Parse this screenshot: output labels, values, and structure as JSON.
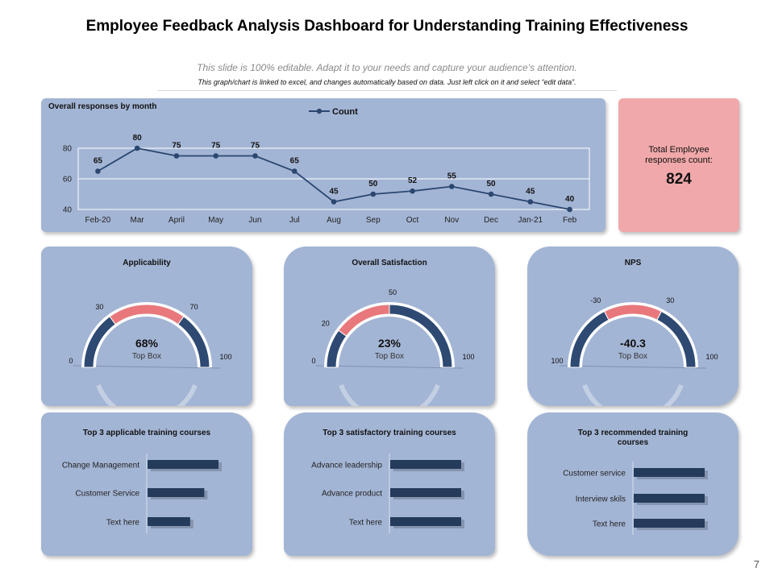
{
  "header": {
    "title": "Employee Feedback Analysis Dashboard for Understanding Training Effectiveness",
    "subtitle1": "This slide is 100% editable. Adapt it to your needs and capture your audience’s attention.",
    "subtitle2": "This graph/chart is linked to excel, and changes automatically based on data. Just left click on it and select “edit data”."
  },
  "total": {
    "label_line1": "Total Employee",
    "label_line2": "responses count:",
    "value": "824"
  },
  "page_number": "7",
  "colors": {
    "panel": "#a3b5d5",
    "line": "#2b4770",
    "bar": "#243b5c",
    "gauge_dark": "#2e4a73",
    "gauge_pink": "#e8787c",
    "total_bg": "#f0a8aa"
  },
  "chart_data": [
    {
      "type": "line",
      "title": "Overall responses by month",
      "legend": "Count",
      "legend_position": "top-center",
      "categories": [
        "Feb-20",
        "Mar",
        "April",
        "May",
        "Jun",
        "Jul",
        "Aug",
        "Sep",
        "Oct",
        "Nov",
        "Dec",
        "Jan-21",
        "Feb"
      ],
      "values": [
        65,
        80,
        75,
        75,
        75,
        65,
        45,
        50,
        52,
        55,
        50,
        45,
        40
      ],
      "ylim": [
        40,
        80
      ],
      "yticks": [
        40,
        60,
        80
      ],
      "grid": true
    },
    {
      "type": "gauge",
      "title": "Applicability",
      "value_label": "68%",
      "sub_label": "Top Box",
      "scale": [
        "0",
        "30",
        "70",
        "100"
      ],
      "range": [
        0,
        100
      ],
      "highlight": [
        30,
        70
      ]
    },
    {
      "type": "gauge",
      "title": "Overall Satisfaction",
      "value_label": "23%",
      "sub_label": "Top Box",
      "scale": [
        "0",
        "20",
        "50",
        "100"
      ],
      "range": [
        0,
        100
      ],
      "highlight": [
        20,
        50
      ]
    },
    {
      "type": "gauge",
      "title": "NPS",
      "value_label": "-40.3",
      "sub_label": "Top Box",
      "scale": [
        "100",
        "-30",
        "30",
        "100"
      ],
      "range": [
        -100,
        100
      ],
      "highlight": [
        -30,
        30
      ]
    },
    {
      "type": "bar",
      "orientation": "horizontal",
      "title": "Top 3 applicable training courses",
      "categories": [
        "Change Management",
        "Customer Service",
        "Text here"
      ],
      "values": [
        100,
        80,
        60
      ]
    },
    {
      "type": "bar",
      "orientation": "horizontal",
      "title": "Top 3 satisfactory training courses",
      "categories": [
        "Advance leadership",
        "Advance product",
        "Text here"
      ],
      "values": [
        100,
        100,
        100
      ]
    },
    {
      "type": "bar",
      "orientation": "horizontal",
      "title_line1": "Top 3 recommended training",
      "title_line2": "courses",
      "categories": [
        "Customer service",
        "Interview skils",
        "Text here"
      ],
      "values": [
        100,
        100,
        100
      ]
    }
  ]
}
